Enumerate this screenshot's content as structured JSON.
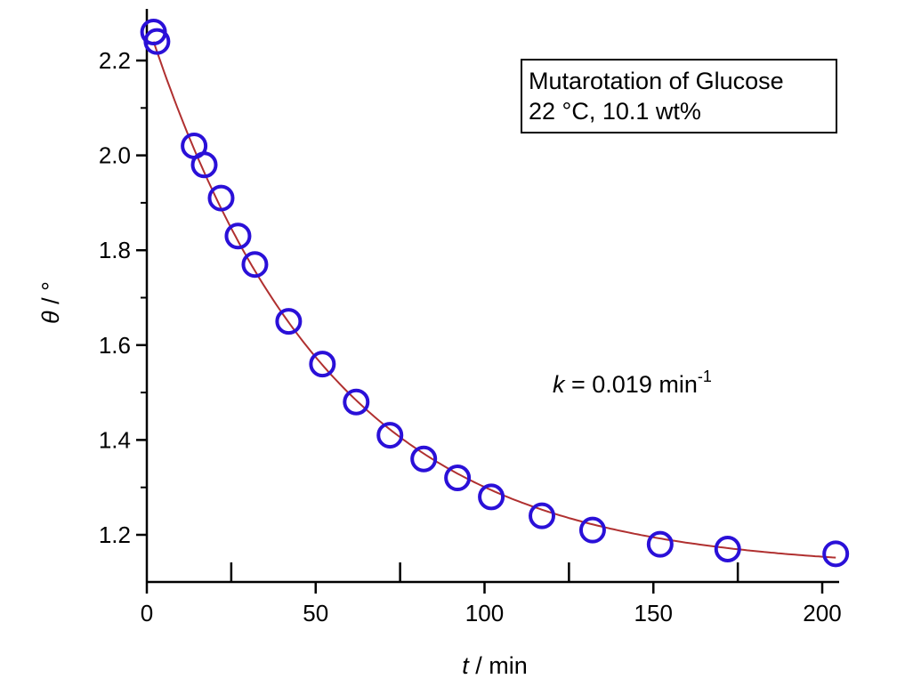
{
  "chart_data": {
    "type": "scatter",
    "title": "",
    "xlabel": {
      "symbol": "t",
      "unit": " / min"
    },
    "ylabel": {
      "symbol": "θ",
      "unit": " / °"
    },
    "xlim": [
      0,
      205
    ],
    "ylim": [
      1.1,
      2.3
    ],
    "x_ticks": [
      0,
      50,
      100,
      150,
      200
    ],
    "x_tick_labels": [
      "0",
      "50",
      "100",
      "150",
      "200"
    ],
    "y_ticks": [
      1.2,
      1.4,
      1.6,
      1.8,
      2.0,
      2.2
    ],
    "y_tick_labels": [
      "1.2",
      "1.4",
      "1.6",
      "1.8",
      "2.0",
      "2.2"
    ],
    "x_minor_ticks": [
      25,
      75,
      125,
      175
    ],
    "y_minor_ticks": [
      1.3,
      1.5,
      1.7,
      1.9,
      2.1
    ],
    "grid": false,
    "series": [
      {
        "marker": "open-circle",
        "color": "#2a10d8",
        "x": [
          2,
          3,
          14,
          17,
          22,
          27,
          32,
          42,
          52,
          62,
          72,
          82,
          92,
          102,
          117,
          132,
          152,
          172,
          204
        ],
        "y": [
          2.26,
          2.24,
          2.02,
          1.98,
          1.91,
          1.83,
          1.77,
          1.65,
          1.56,
          1.48,
          1.41,
          1.36,
          1.32,
          1.28,
          1.24,
          1.21,
          1.18,
          1.17,
          1.16
        ]
      }
    ],
    "fit": {
      "type": "exponential-decay",
      "color": "#b03030",
      "k": 0.019,
      "y_inf": 1.128,
      "amplitude": 1.155,
      "x_range": [
        2,
        204
      ]
    },
    "legend": {
      "placement": "top-right",
      "lines": [
        "Mutarotation of Glucose",
        "22 °C, 10.1 wt%"
      ]
    },
    "annotation": {
      "symbol": "k",
      "text": " = 0.019 min",
      "superscript": "-1"
    }
  }
}
